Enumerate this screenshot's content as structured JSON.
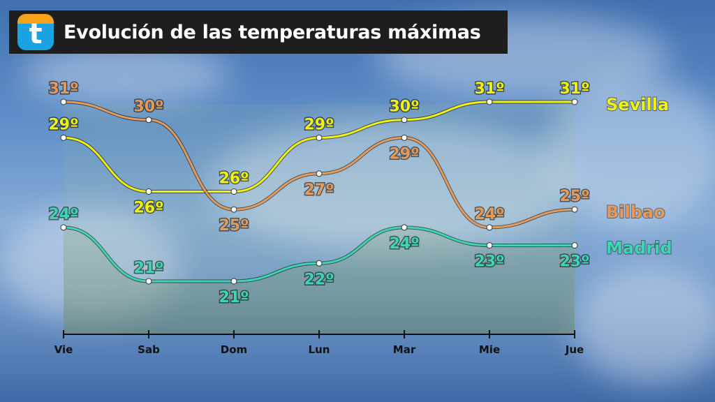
{
  "header": {
    "logo_letter": "t",
    "title": "Evolución de las temperaturas máximas"
  },
  "chart_data": {
    "type": "line",
    "categories": [
      "Vie",
      "Sab",
      "Dom",
      "Lun",
      "Mar",
      "Mie",
      "Jue"
    ],
    "ylim": [
      20,
      32
    ],
    "series": [
      {
        "name": "Sevilla",
        "color": "#f2f20f",
        "values": [
          29,
          26,
          26,
          29,
          30,
          31,
          31
        ],
        "labels": [
          "29º",
          "26º",
          "26º",
          "29º",
          "30º",
          "31º",
          "31º"
        ]
      },
      {
        "name": "Bilbao",
        "color": "#e59a5a",
        "values": [
          31,
          30,
          25,
          27,
          29,
          24,
          25
        ],
        "labels": [
          "31º",
          "30º",
          "25º",
          "27º",
          "29º",
          "24º",
          "25º"
        ]
      },
      {
        "name": "Madrid",
        "color": "#3dd6b2",
        "values": [
          24,
          21,
          21,
          22,
          24,
          23,
          23
        ],
        "labels": [
          "24º",
          "21º",
          "21º",
          "22º",
          "24º",
          "23º",
          "23º"
        ]
      }
    ]
  }
}
